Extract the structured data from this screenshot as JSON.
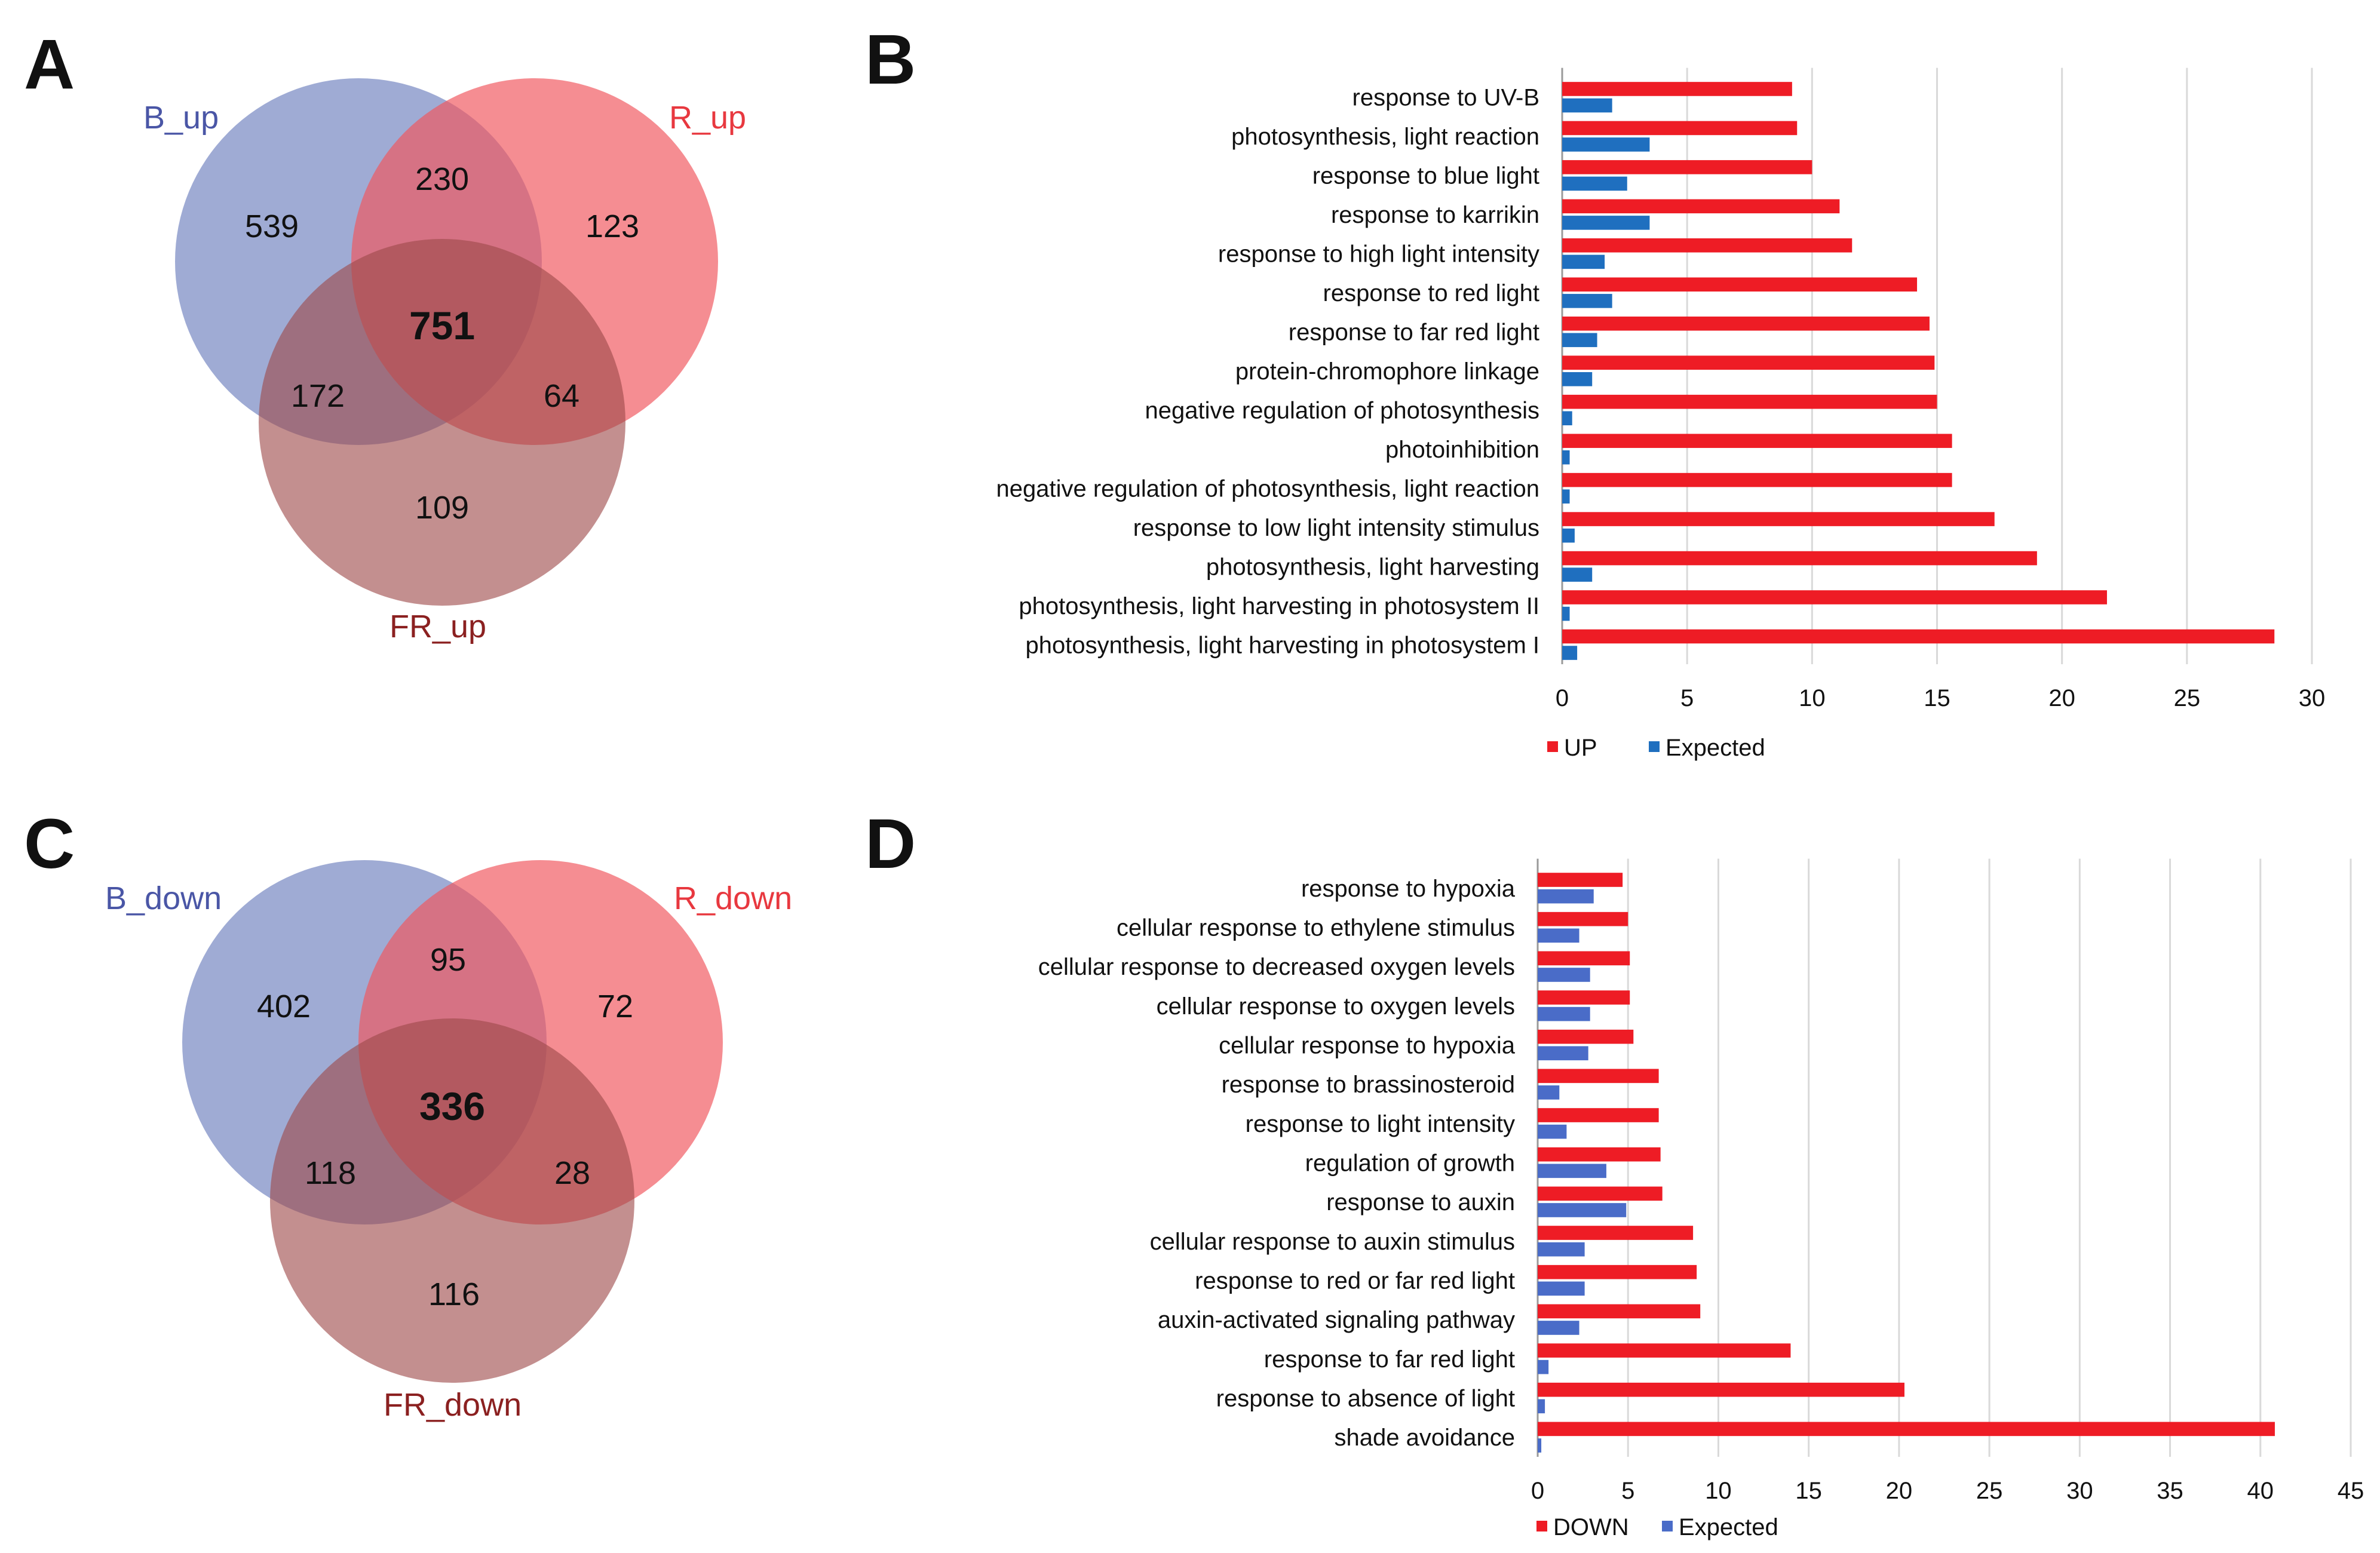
{
  "panel_letters": {
    "a": "A",
    "b": "B",
    "c": "C",
    "d": "D"
  },
  "venn_up": {
    "labels": {
      "b": "B_up",
      "r": "R_up",
      "fr": "FR_up"
    },
    "counts": {
      "b_only": "539",
      "r_only": "123",
      "fr_only": "109",
      "b_r": "230",
      "b_fr": "172",
      "r_fr": "64",
      "all": "751"
    }
  },
  "venn_down": {
    "labels": {
      "b": "B_down",
      "r": "R_down",
      "fr": "FR_down"
    },
    "counts": {
      "b_only": "402",
      "r_only": "72",
      "fr_only": "116",
      "b_r": "95",
      "b_fr": "118",
      "r_fr": "28",
      "all": "336"
    }
  },
  "colors": {
    "blue_circle": "#7f8fc6",
    "red_circle": "#f0575e",
    "darkred_circle": "#9e4a4a",
    "blue_label": "#4a56a6",
    "red_label": "#e8383f",
    "darkred_label": "#8b2020",
    "up_bar": "#ee1c25",
    "expected_bar_b": "#1f6fbf",
    "expected_bar_d": "#4a6cc8"
  },
  "chart_data": [
    {
      "type": "bar",
      "orientation": "horizontal",
      "categories": [
        "response to UV-B",
        "photosynthesis, light reaction",
        "response to blue light",
        "response to karrikin",
        "response to high light intensity",
        "response to red light",
        "response to far red light",
        "protein-chromophore linkage",
        "negative regulation of photosynthesis",
        "photoinhibition",
        "negative regulation of photosynthesis, light reaction",
        "response to low light intensity stimulus",
        "photosynthesis, light harvesting",
        "photosynthesis, light harvesting in photosystem II",
        "photosynthesis, light harvesting in photosystem I"
      ],
      "series": [
        {
          "name": "UP",
          "values": [
            9.2,
            9.4,
            10.0,
            11.1,
            11.6,
            14.2,
            14.7,
            14.9,
            15.0,
            15.6,
            15.6,
            17.3,
            19.0,
            21.8,
            28.5
          ]
        },
        {
          "name": "Expected",
          "values": [
            2.0,
            3.5,
            2.6,
            3.5,
            1.7,
            2.0,
            1.4,
            1.2,
            0.4,
            0.3,
            0.3,
            0.5,
            1.2,
            0.3,
            0.6
          ]
        }
      ],
      "xlim": [
        0,
        30
      ],
      "xticks": [
        "0",
        "5",
        "10",
        "15",
        "20",
        "25",
        "30"
      ],
      "legend": [
        "UP",
        "Expected"
      ],
      "legend_position": "bottom-left",
      "grid": true
    },
    {
      "type": "bar",
      "orientation": "horizontal",
      "categories": [
        "response to hypoxia",
        "cellular response to ethylene stimulus",
        "cellular response to decreased oxygen levels",
        "cellular response to oxygen levels",
        "cellular response to hypoxia",
        "response to brassinosteroid",
        "response to light intensity",
        "regulation of growth",
        "response to auxin",
        "cellular response to auxin stimulus",
        "response to red or far red light",
        "auxin-activated signaling pathway",
        "response to far red light",
        "response to absence of light",
        "shade avoidance"
      ],
      "series": [
        {
          "name": "DOWN",
          "values": [
            4.7,
            5.0,
            5.1,
            5.1,
            5.3,
            6.7,
            6.7,
            6.8,
            6.9,
            8.6,
            8.8,
            9.0,
            14.0,
            20.3,
            40.8
          ]
        },
        {
          "name": "Expected",
          "values": [
            3.1,
            2.3,
            2.9,
            2.9,
            2.8,
            1.2,
            1.6,
            3.8,
            4.9,
            2.6,
            2.6,
            2.3,
            0.6,
            0.4,
            0.2
          ]
        }
      ],
      "xlim": [
        0,
        45
      ],
      "xticks": [
        "0",
        "5",
        "10",
        "15",
        "20",
        "25",
        "30",
        "35",
        "40",
        "45"
      ],
      "legend": [
        "DOWN",
        "Expected"
      ],
      "legend_position": "bottom-left",
      "grid": true
    }
  ]
}
